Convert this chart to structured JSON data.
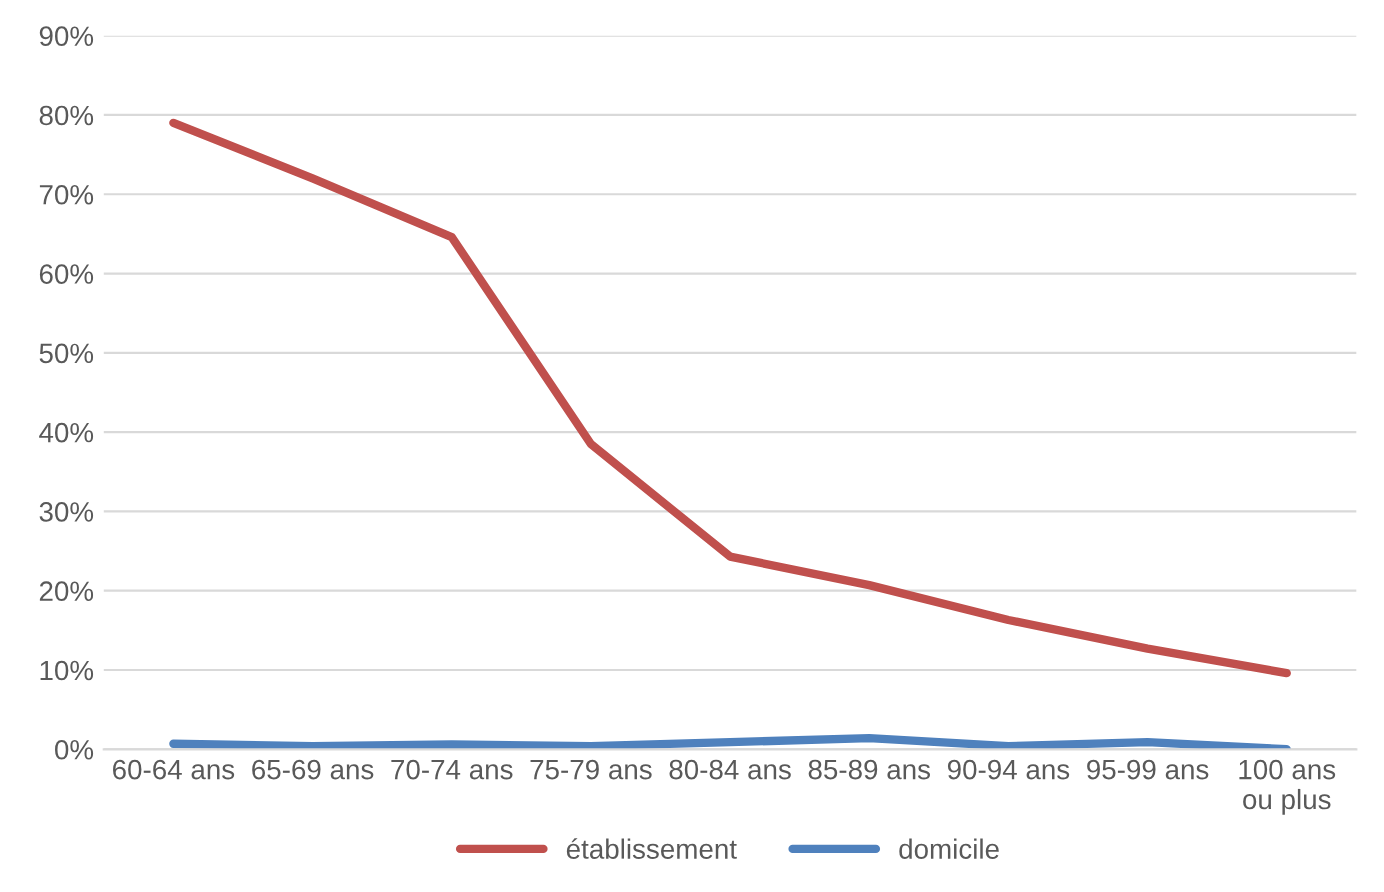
{
  "chart_data": {
    "type": "line",
    "categories": [
      "60-64 ans",
      "65-69 ans",
      "70-74 ans",
      "75-79 ans",
      "80-84 ans",
      "85-89 ans",
      "90-94 ans",
      "95-99 ans",
      "100 ans\nou plus"
    ],
    "series": [
      {
        "name": "établissement",
        "color": "#c0504d",
        "values": [
          79,
          72,
          64.6,
          38.5,
          24.3,
          20.7,
          16.3,
          12.7,
          9.6
        ]
      },
      {
        "name": "domicile",
        "color": "#4f81bd",
        "values": [
          0.7,
          0.4,
          0.6,
          0.4,
          0.9,
          1.4,
          0.4,
          0.9,
          0.0
        ]
      }
    ],
    "ylim": [
      0,
      90
    ],
    "yticks": [
      {
        "value": 0,
        "label": "0%"
      },
      {
        "value": 10,
        "label": "10%"
      },
      {
        "value": 20,
        "label": "20%"
      },
      {
        "value": 30,
        "label": "30%"
      },
      {
        "value": 40,
        "label": "40%"
      },
      {
        "value": 50,
        "label": "50%"
      },
      {
        "value": 60,
        "label": "60%"
      },
      {
        "value": 70,
        "label": "70%"
      },
      {
        "value": 80,
        "label": "80%"
      },
      {
        "value": 90,
        "label": "90%"
      }
    ],
    "grid": "y",
    "legend": "bottom",
    "marker": "none",
    "line_style": "solid"
  }
}
